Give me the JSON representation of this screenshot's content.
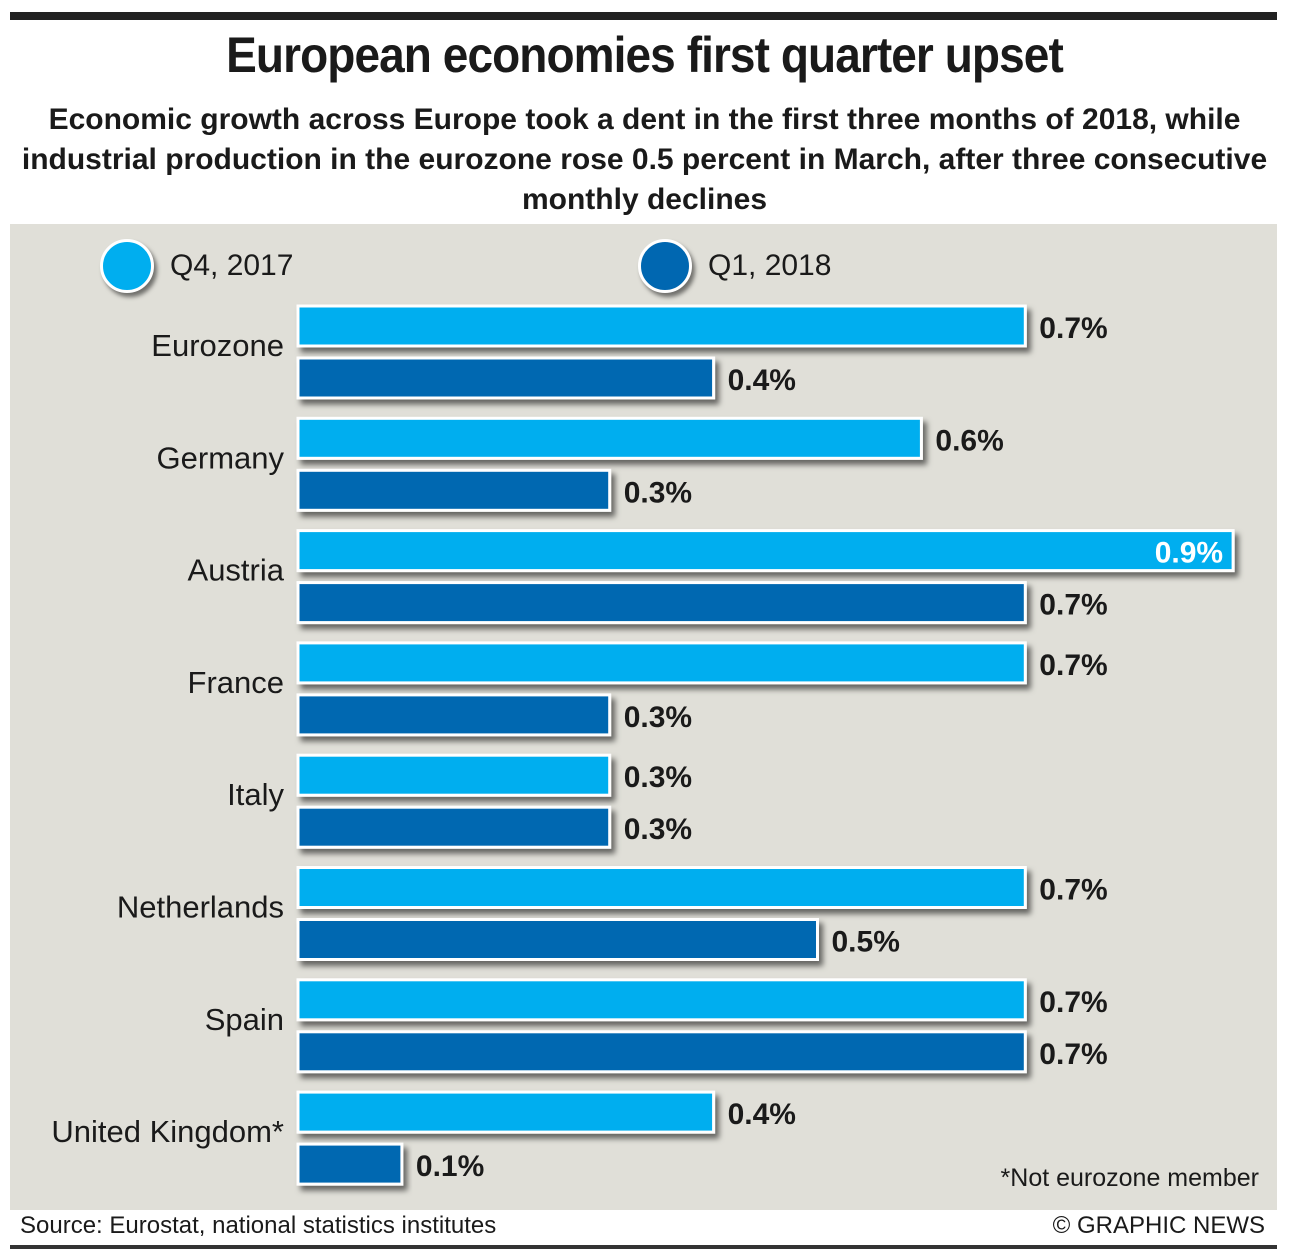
{
  "header": {
    "title": "European economies first quarter upset",
    "subtitle": "Economic growth across Europe took a dent in the first three months of 2018, while industrial production in the eurozone rose 0.5 percent in March, after three consecutive monthly declines"
  },
  "footer": {
    "source": "Source: Eurostat, national statistics institutes",
    "credit": "© GRAPHIC NEWS",
    "footnote": "*Not eurozone member"
  },
  "colors": {
    "q4_2017": "#00aeef",
    "q1_2018": "#0067b1",
    "panel_background": "#e0dfd8",
    "text": "#1a1a1a"
  },
  "chart_data": {
    "type": "bar",
    "orientation": "horizontal",
    "title": "European economies first quarter upset",
    "xlabel": "",
    "ylabel": "",
    "value_suffix": "%",
    "xlim": [
      0,
      1.0
    ],
    "grid": false,
    "legend_position": "top",
    "categories": [
      "Eurozone",
      "Germany",
      "Austria",
      "France",
      "Italy",
      "Netherlands",
      "Spain",
      "United Kingdom*"
    ],
    "series": [
      {
        "name": "Q4, 2017",
        "color": "#00aeef",
        "values": [
          0.7,
          0.6,
          0.9,
          0.7,
          0.3,
          0.7,
          0.7,
          0.4
        ],
        "labels": [
          "0.7%",
          "0.6%",
          "0.9%",
          "0.7%",
          "0.3%",
          "0.7%",
          "0.7%",
          "0.4%"
        ]
      },
      {
        "name": "Q1, 2018",
        "color": "#0067b1",
        "values": [
          0.4,
          0.3,
          0.7,
          0.3,
          0.3,
          0.5,
          0.7,
          0.1
        ],
        "labels": [
          "0.4%",
          "0.3%",
          "0.7%",
          "0.3%",
          "0.3%",
          "0.5%",
          "0.7%",
          "0.1%"
        ]
      }
    ]
  }
}
